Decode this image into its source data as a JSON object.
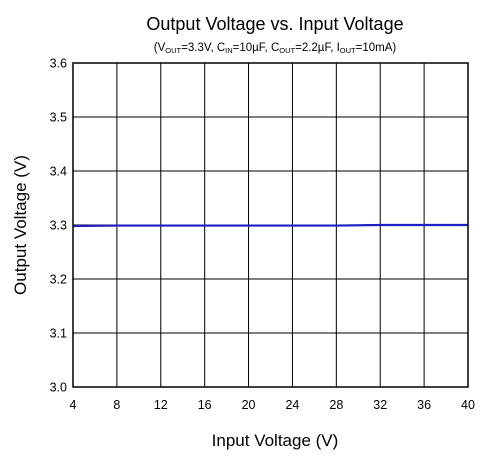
{
  "chart_data": {
    "type": "line",
    "title": "Output Voltage vs. Input Voltage",
    "subtitle": {
      "vout_symbol": "V",
      "vout_sub": "OUT",
      "vout_value": "=3.3V, ",
      "cin_symbol": "C",
      "cin_sub": "IN",
      "cin_value": "=10µF, ",
      "cout_symbol": "C",
      "cout_sub": "OUT",
      "cout_value": "=2.2µF, ",
      "iout_symbol": "I",
      "iout_sub": "OUT",
      "iout_value": "=10mA)",
      "open": "("
    },
    "xlabel": "Input Voltage (V)",
    "ylabel": "Output Voltage (V)",
    "xlim": [
      4,
      40
    ],
    "ylim": [
      3.0,
      3.6
    ],
    "x_ticks": [
      4,
      8,
      12,
      16,
      20,
      24,
      28,
      32,
      36,
      40
    ],
    "y_ticks": [
      3.0,
      3.1,
      3.2,
      3.3,
      3.4,
      3.5,
      3.6
    ],
    "x_tick_labels": [
      "4",
      "8",
      "12",
      "16",
      "20",
      "24",
      "28",
      "32",
      "36",
      "40"
    ],
    "y_tick_labels": [
      "3.0",
      "3.1",
      "3.2",
      "3.3",
      "3.4",
      "3.5",
      "3.6"
    ],
    "grid": true,
    "series": [
      {
        "color": "#1f1fbf",
        "x": [
          4,
          8,
          12,
          16,
          20,
          24,
          28,
          32,
          36,
          40
        ],
        "y": [
          3.298,
          3.299,
          3.299,
          3.299,
          3.299,
          3.299,
          3.299,
          3.3,
          3.3,
          3.3
        ]
      }
    ]
  }
}
